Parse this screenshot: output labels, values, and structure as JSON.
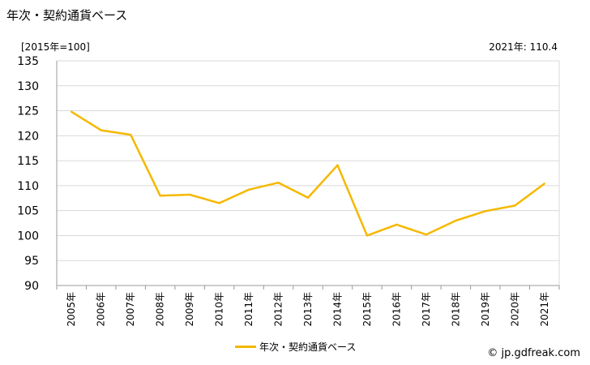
{
  "title": "年次・契約通貨ベース",
  "unit": "[2015年=100]",
  "latest": "2021年: 110.4",
  "source": "© jp.gdfreak.com",
  "colors": {
    "line": "#f5b800",
    "grid": "#d9d9d9",
    "axis": "#999999"
  },
  "chart_data": {
    "type": "line",
    "x": [
      "2005年",
      "2006年",
      "2007年",
      "2008年",
      "2009年",
      "2010年",
      "2011年",
      "2012年",
      "2013年",
      "2014年",
      "2015年",
      "2016年",
      "2017年",
      "2018年",
      "2019年",
      "2020年",
      "2021年"
    ],
    "series": [
      {
        "name": "年次・契約通貨ベース",
        "values": [
          124.8,
          121.1,
          120.2,
          108.0,
          108.2,
          106.5,
          109.2,
          110.6,
          107.6,
          114.1,
          100.0,
          102.2,
          100.2,
          103.0,
          104.9,
          106.0,
          110.4
        ]
      }
    ],
    "ylim": [
      90,
      135
    ],
    "yticks": [
      90,
      95,
      100,
      105,
      110,
      115,
      120,
      125,
      130,
      135
    ],
    "grid": true,
    "legend": "bottom-center"
  }
}
